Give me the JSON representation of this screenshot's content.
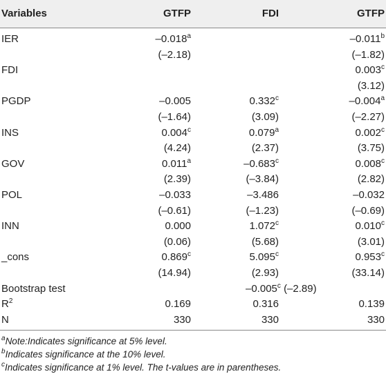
{
  "table": {
    "header": [
      "Variables",
      "GTFP",
      "FDI",
      "GTFP"
    ],
    "rows": [
      {
        "label": "IER",
        "coef": [
          {
            "text": "–0.018",
            "sup": "a"
          },
          null,
          {
            "text": "–0.011",
            "sup": "b"
          }
        ],
        "t": [
          "(–2.18)",
          null,
          "(–1.82)"
        ]
      },
      {
        "label": "FDI",
        "coef": [
          null,
          null,
          {
            "text": "0.003",
            "sup": "c"
          }
        ],
        "t": [
          null,
          null,
          "(3.12)"
        ]
      },
      {
        "label": "PGDP",
        "coef": [
          {
            "text": "–0.005"
          },
          {
            "text": "0.332",
            "sup": "c"
          },
          {
            "text": "–0.004",
            "sup": "a"
          }
        ],
        "t": [
          "(–1.64)",
          "(3.09)",
          "(–2.27)"
        ]
      },
      {
        "label": "INS",
        "coef": [
          {
            "text": "0.004",
            "sup": "c"
          },
          {
            "text": "0.079",
            "sup": "a"
          },
          {
            "text": "0.002",
            "sup": "c"
          }
        ],
        "t": [
          "(4.24)",
          "(2.37)",
          "(3.75)"
        ]
      },
      {
        "label": "GOV",
        "coef": [
          {
            "text": "0.011",
            "sup": "a"
          },
          {
            "text": "–0.683",
            "sup": "c"
          },
          {
            "text": "0.008",
            "sup": "c"
          }
        ],
        "t": [
          "(2.39)",
          "(–3.84)",
          "(2.82)"
        ]
      },
      {
        "label": "POL",
        "coef": [
          {
            "text": "–0.033"
          },
          {
            "text": "–3.486"
          },
          {
            "text": "–0.032"
          }
        ],
        "t": [
          "(–0.61)",
          "(–1.23)",
          "(–0.69)"
        ]
      },
      {
        "label": "INN",
        "coef": [
          {
            "text": "0.000"
          },
          {
            "text": "1.072",
            "sup": "c"
          },
          {
            "text": "0.010",
            "sup": "c"
          }
        ],
        "t": [
          "(0.06)",
          "(5.68)",
          "(3.01)"
        ]
      },
      {
        "label": "_cons",
        "coef": [
          {
            "text": "0.869",
            "sup": "c"
          },
          {
            "text": "5.095",
            "sup": "c"
          },
          {
            "text": "0.953",
            "sup": "c"
          }
        ],
        "t": [
          "(14.94)",
          "(2.93)",
          "(33.14)"
        ]
      },
      {
        "label": "Bootstrap test",
        "span": {
          "text": "–0.005",
          "sup": "c",
          "t": "(–2.89)"
        }
      },
      {
        "label": "R",
        "label_sup": "2",
        "coef": [
          {
            "text": "0.169"
          },
          {
            "text": "0.316"
          },
          {
            "text": "0.139"
          }
        ]
      },
      {
        "label": "N",
        "coef": [
          {
            "text": "330"
          },
          {
            "text": "330"
          },
          {
            "text": "330"
          }
        ]
      }
    ],
    "notes": [
      {
        "sup": "a",
        "text": "Note:Indicates significance at 5% level."
      },
      {
        "sup": "b",
        "text": "Indicates significance at the 10% level."
      },
      {
        "sup": "c",
        "text": "Indicates significance at 1% level. The t-values are in parentheses."
      }
    ]
  }
}
